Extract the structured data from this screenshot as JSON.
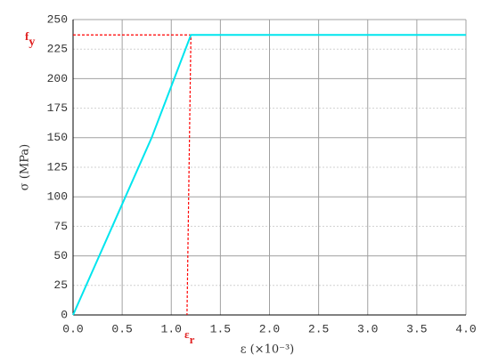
{
  "chart_data": {
    "type": "line",
    "x_label": "ε (×10⁻³)",
    "y_label": "σ (MPa)",
    "series": [
      {
        "color": "#00e5ee",
        "x": [
          0,
          0.8,
          1.2,
          4.0
        ],
        "values": [
          0,
          150,
          237,
          237
        ]
      }
    ],
    "xlim": [
      0,
      4.0
    ],
    "ylim": [
      0,
      250
    ],
    "xticks": [
      {
        "value": 0,
        "label": "0.0"
      },
      0.5,
      {
        "value": 1,
        "label": "1.0"
      },
      1.5,
      {
        "value": 2,
        "label": "2.0"
      },
      2.5,
      {
        "value": 3,
        "label": "3.0"
      },
      3.5,
      {
        "value": 4,
        "label": "4.0"
      }
    ],
    "yticks": [
      0,
      25,
      50,
      75,
      100,
      125,
      150,
      175,
      200,
      225,
      250
    ],
    "grid": true,
    "reference_line": {
      "color": "#ff0000",
      "x": [
        0,
        1.2,
        1.16
      ],
      "values": [
        237,
        237,
        0
      ]
    },
    "annotations": [
      {
        "text": "f",
        "sub": "y"
      },
      {
        "text": "ε",
        "sub": "r"
      }
    ]
  }
}
